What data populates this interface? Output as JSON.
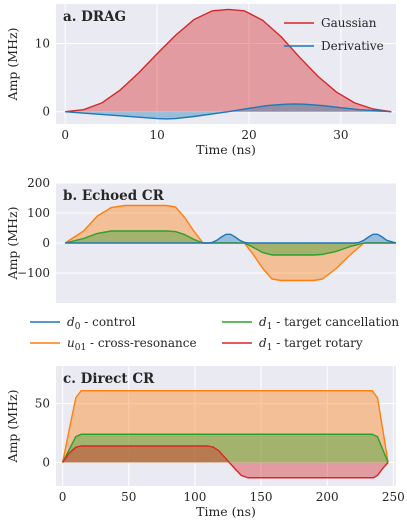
{
  "chart_data": [
    {
      "type": "area",
      "title": "a. DRAG",
      "xlabel": "Time (ns)",
      "ylabel": "Amp (MHz)",
      "xlim": [
        -1,
        36
      ],
      "ylim": [
        -1.8,
        15.8
      ],
      "xticks": [
        0,
        10,
        20,
        30
      ],
      "yticks": [
        0,
        10
      ],
      "grid": true,
      "legend_position": "top-right",
      "series": [
        {
          "name": "Gaussian",
          "color": "#D62728",
          "x": [
            0,
            2,
            4,
            6,
            8,
            10,
            12,
            14,
            16,
            17.75,
            19.5,
            21.5,
            23.5,
            25.5,
            27.5,
            29.5,
            31.5,
            33.5,
            35.5
          ],
          "y": [
            0,
            0.3,
            1.3,
            3.2,
            5.7,
            8.5,
            11.2,
            13.5,
            14.8,
            15.0,
            14.8,
            13.4,
            11.0,
            8.0,
            5.2,
            2.9,
            1.3,
            0.4,
            0
          ]
        },
        {
          "name": "Derivative",
          "color": "#1F77B4",
          "x": [
            0,
            3,
            6,
            8,
            10,
            11,
            12,
            14,
            17.75,
            20,
            22,
            24,
            25,
            26,
            28,
            30,
            32,
            35.5
          ],
          "y": [
            0,
            -0.3,
            -0.6,
            -0.8,
            -1.0,
            -1.05,
            -1.0,
            -0.7,
            0,
            0.5,
            0.9,
            1.1,
            1.15,
            1.1,
            0.9,
            0.6,
            0.3,
            0
          ]
        }
      ]
    },
    {
      "type": "area",
      "title": "b. Echoed CR",
      "xlabel": "",
      "ylabel": "Amp (MHz)",
      "xlim": [
        -1,
        36
      ],
      "ylim": [
        -200,
        200
      ],
      "yticks": [
        -100,
        0,
        100,
        200
      ],
      "grid": true,
      "series": [
        {
          "name": "u01",
          "color": "#FF7F0E",
          "x": [
            0,
            2,
            3.5,
            5,
            6.5,
            7,
            11,
            12,
            13,
            14,
            15,
            16,
            17,
            18,
            19.5,
            20.5,
            21.5,
            22.5,
            23.5,
            27,
            28,
            29.5,
            31,
            32.5,
            34,
            36
          ],
          "y": [
            0,
            40,
            90,
            118,
            125,
            125,
            125,
            120,
            85,
            40,
            0,
            0,
            0,
            0,
            0,
            -40,
            -85,
            -120,
            -125,
            -125,
            -120,
            -85,
            -40,
            0,
            0,
            0
          ]
        },
        {
          "name": "d1 target cancellation",
          "color": "#2CA02C",
          "x": [
            0,
            2,
            3.5,
            5,
            11,
            12,
            13,
            14,
            15,
            16,
            17,
            18,
            19.5,
            20.5,
            21.5,
            22.5,
            23.5,
            27,
            28,
            29.5,
            31,
            32.5,
            34,
            36
          ],
          "y": [
            0,
            15,
            32,
            40,
            40,
            38,
            28,
            12,
            0,
            0,
            0,
            0,
            0,
            -15,
            -32,
            -40,
            -40,
            -40,
            -38,
            -28,
            -12,
            0,
            0,
            0
          ]
        },
        {
          "name": "d0 control",
          "color": "#1F77B4",
          "x": [
            0,
            15,
            15.5,
            16,
            16.5,
            17,
            17.5,
            18,
            18.5,
            19,
            19.5,
            20,
            31,
            31.5,
            32,
            32.5,
            33,
            33.5,
            34,
            34.5,
            35,
            36
          ],
          "y": [
            0,
            0,
            0,
            2,
            9,
            20,
            29,
            29,
            20,
            9,
            2,
            0,
            0,
            0,
            2,
            9,
            20,
            29,
            29,
            20,
            9,
            0
          ]
        }
      ]
    },
    {
      "type": "area",
      "title": "c. Direct CR",
      "xlabel": "Time (ns)",
      "ylabel": "Amp (MHz)",
      "xlim": [
        -5,
        252
      ],
      "ylim": [
        -20,
        82
      ],
      "xticks": [
        0,
        50,
        100,
        150,
        200,
        250
      ],
      "yticks": [
        0,
        50
      ],
      "grid": true,
      "series": [
        {
          "name": "u01 cross-resonance",
          "color": "#FF7F0E",
          "x": [
            0,
            5,
            10,
            14,
            18,
            230,
            234,
            238,
            242,
            246
          ],
          "y": [
            0,
            28,
            55,
            61,
            61,
            61,
            61,
            55,
            28,
            0
          ]
        },
        {
          "name": "d1 target cancellation",
          "color": "#2CA02C",
          "x": [
            0,
            5,
            10,
            14,
            18,
            230,
            234,
            238,
            242,
            246
          ],
          "y": [
            0,
            11,
            22,
            24,
            24,
            24,
            24,
            22,
            11,
            0
          ]
        },
        {
          "name": "d1 target rotary",
          "color": "#D62728",
          "x": [
            0,
            5,
            10,
            14,
            18,
            110,
            114,
            118,
            122,
            126,
            130,
            135,
            140,
            235,
            238,
            242,
            246
          ],
          "y": [
            0,
            8,
            13,
            14,
            14,
            14,
            13,
            10,
            5,
            0,
            -5,
            -11,
            -13,
            -13,
            -11,
            -5,
            0
          ]
        }
      ]
    }
  ],
  "legends": {
    "top": [
      {
        "label": "Gaussian",
        "color": "#D62728"
      },
      {
        "label": "Derivative",
        "color": "#1F77B4"
      }
    ],
    "middle": [
      {
        "sym": "d",
        "sub": "0",
        "text": " - control",
        "color": "#1F77B4"
      },
      {
        "sym": "d",
        "sub": "1",
        "text": " - target cancellation",
        "color": "#2CA02C"
      },
      {
        "sym": "u",
        "sub": "01",
        "text": " - cross-resonance",
        "color": "#FF7F0E"
      },
      {
        "sym": "d",
        "sub": "1",
        "text": " - target rotary",
        "color": "#D62728"
      }
    ]
  }
}
